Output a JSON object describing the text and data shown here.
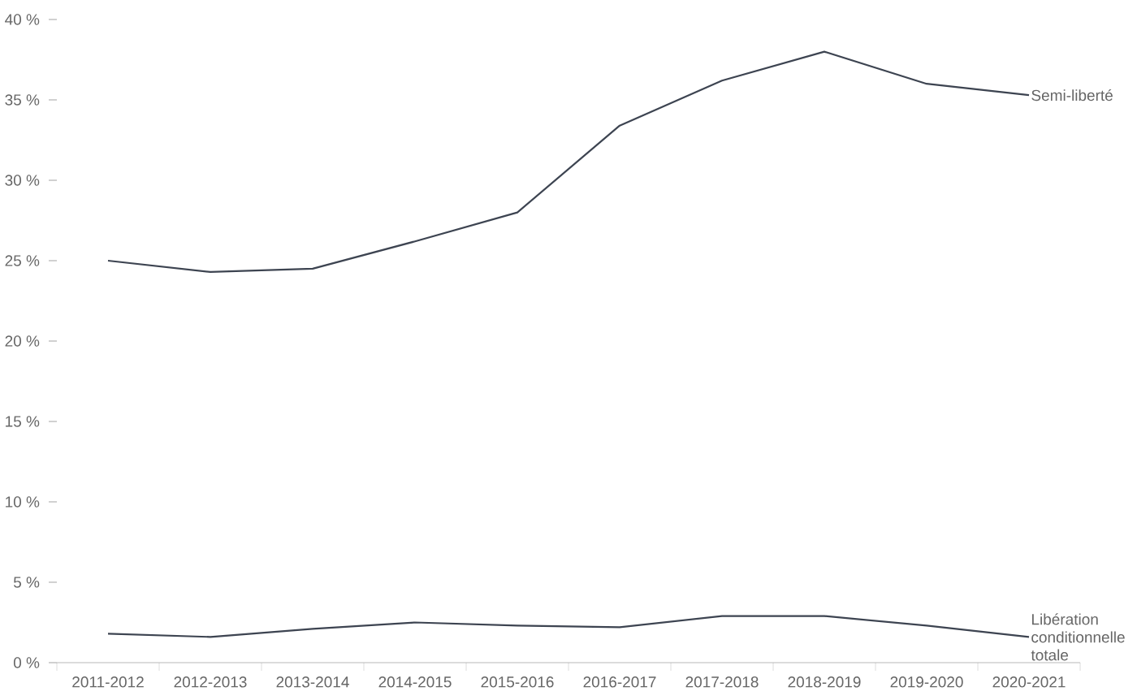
{
  "chart_data": {
    "type": "line",
    "categories": [
      "2011-2012",
      "2012-2013",
      "2013-2014",
      "2014-2015",
      "2015-2016",
      "2016-2017",
      "2017-2018",
      "2018-2019",
      "2019-2020",
      "2020-2021"
    ],
    "series": [
      {
        "name": "Semi-liberté",
        "color": "#3d4451",
        "values": [
          25.0,
          24.3,
          24.5,
          26.2,
          28.0,
          33.4,
          36.2,
          38.0,
          36.0,
          35.3
        ]
      },
      {
        "name": "Libération conditionnelle totale",
        "color": "#3d4451",
        "values": [
          1.8,
          1.6,
          2.1,
          2.5,
          2.3,
          2.2,
          2.9,
          2.9,
          2.3,
          1.6
        ]
      }
    ],
    "ylim": [
      0,
      40
    ],
    "yticks": [
      {
        "value": 0,
        "label": "0 %"
      },
      {
        "value": 5,
        "label": "5 %"
      },
      {
        "value": 10,
        "label": "10 %"
      },
      {
        "value": 15,
        "label": "15 %"
      },
      {
        "value": 20,
        "label": "20 %"
      },
      {
        "value": 25,
        "label": "25 %"
      },
      {
        "value": 30,
        "label": "30 %"
      },
      {
        "value": 35,
        "label": "35 %"
      },
      {
        "value": 40,
        "label": "40 %"
      }
    ],
    "grid": false,
    "legend": false,
    "marker": "none",
    "line_style": "solid"
  }
}
